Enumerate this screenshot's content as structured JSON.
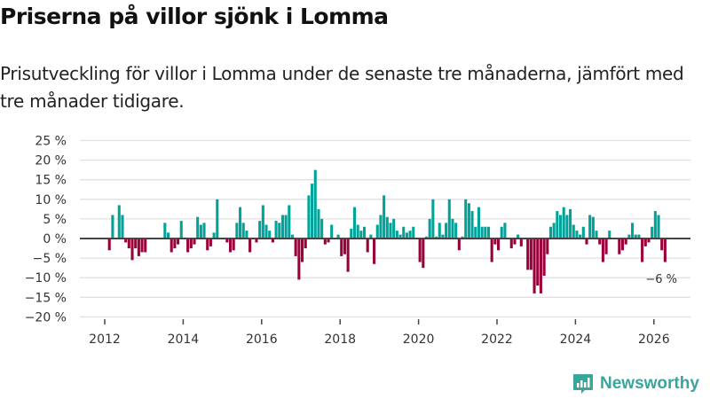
{
  "header": {
    "title": "Priserna på villor sjönk i Lomma",
    "subtitle": "Prisutveckling för villor i Lomma under de senaste tre månaderna, jämfört med tre månader tidigare."
  },
  "brand": {
    "name": "Newsworthy",
    "color": "#3aa59a"
  },
  "colors": {
    "positive": "#00a39a",
    "negative": "#9a0039",
    "grid": "#e0e0e0",
    "zero_line": "#444444"
  },
  "chart_data": {
    "type": "bar",
    "title": "Priserna på villor sjönk i Lomma",
    "subtitle": "Prisutveckling för villor i Lomma under de senaste tre månaderna, jämfört med tre månader tidigare.",
    "xlabel": "",
    "ylabel": "",
    "ylim": [
      -20,
      25
    ],
    "yticks": [
      25,
      20,
      15,
      10,
      5,
      0,
      -5,
      -10,
      -15,
      -20
    ],
    "ytick_labels": [
      "25 %",
      "20 %",
      "15 %",
      "10 %",
      "5 %",
      "0 %",
      "−5 %",
      "−10 %",
      "−15 %",
      "−20 %"
    ],
    "xticks": [
      "2012",
      "2014",
      "2016",
      "2018",
      "2020",
      "2022",
      "2024",
      "2026"
    ],
    "xlim": [
      "2011-07",
      "2026-12"
    ],
    "grid": true,
    "frequency": "monthly",
    "start": "2012-02",
    "unit": "%",
    "annotation": {
      "text": "−6 %",
      "refers_to": "last value"
    },
    "values": [
      -3,
      6,
      0,
      8.5,
      6,
      -1,
      -2.5,
      -5.5,
      -2.5,
      -4.5,
      -3.5,
      -3.5,
      null,
      null,
      null,
      null,
      null,
      4,
      1.5,
      -3.5,
      -2.5,
      -1.5,
      4.5,
      null,
      -3.5,
      -2.5,
      -1.5,
      5.5,
      3.5,
      4,
      -3,
      -2,
      1.5,
      10,
      null,
      null,
      -1,
      -3.5,
      -3,
      4,
      8,
      4,
      2,
      -3.5,
      null,
      -1,
      4.5,
      8.5,
      3.5,
      2,
      -1,
      4.5,
      4,
      6,
      6,
      8.5,
      1,
      -4.5,
      -10.5,
      -6,
      -2.5,
      11,
      14,
      17.5,
      7.5,
      5,
      -1.5,
      -1,
      3.5,
      0,
      1,
      -4.5,
      -4,
      -8.5,
      2.5,
      8,
      3.5,
      2,
      3,
      -3.5,
      1,
      -6.5,
      3.5,
      6,
      11,
      5.5,
      4,
      5,
      2,
      1,
      3,
      1.5,
      2,
      3,
      null,
      -6,
      -7.5,
      0.5,
      5,
      10,
      0.5,
      4,
      1,
      4,
      10,
      5,
      4,
      -3,
      0.5,
      10,
      9,
      7,
      3,
      8,
      3,
      3,
      3,
      -6,
      -1.5,
      -3,
      3,
      4,
      null,
      -2.5,
      -1.5,
      1,
      -2,
      null,
      -8,
      -8,
      -14,
      -12,
      -14,
      -9.5,
      -4,
      3,
      4,
      7,
      6,
      8,
      6,
      7.5,
      3.5,
      2,
      1,
      3,
      -1.5,
      6,
      5.5,
      2,
      -1.5,
      -6,
      -4,
      2,
      0,
      0,
      -4,
      -3,
      -1.5,
      1,
      4,
      1,
      1,
      -6,
      -2,
      -1,
      3,
      7,
      6,
      -3,
      -6
    ]
  }
}
